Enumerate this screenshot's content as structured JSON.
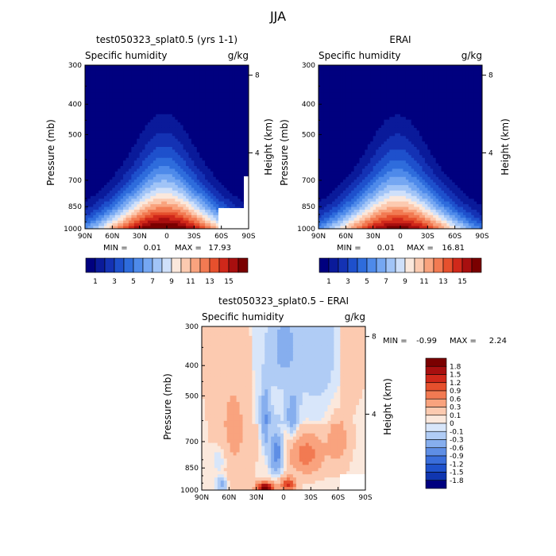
{
  "page_title": "JJA",
  "colors": {
    "positive_scale": [
      "#00007f",
      "#0a1a9a",
      "#1432b4",
      "#1e50cc",
      "#2e6cdc",
      "#4e8aea",
      "#75a7f2",
      "#a1c4f7",
      "#cfe0fa",
      "#fbe8dc",
      "#fccab0",
      "#f9a37e",
      "#f27a52",
      "#e6502d",
      "#d0281a",
      "#a80f0f",
      "#7a0000"
    ],
    "diff_scale": [
      "#7a0000",
      "#a80f0f",
      "#d0281a",
      "#e6502d",
      "#f27a52",
      "#f9a37e",
      "#fccab0",
      "#fbe8dc",
      "#d8e6fa",
      "#b0ccf5",
      "#86aeee",
      "#5e8ee5",
      "#3a6edb",
      "#1f52cc",
      "#1036b0",
      "#00007f"
    ]
  },
  "chart_data": [
    {
      "type": "heatmap",
      "title": "test050323_splat0.5 (yrs 1-1)",
      "variable_label": "Specific humidity",
      "units_label": "g/kg",
      "ylabel": "Pressure (mb)",
      "y2label": "Height (km)",
      "x_ticks": [
        "90N",
        "60N",
        "30N",
        "0",
        "30S",
        "60S",
        "90S"
      ],
      "y_ticks": [
        "300",
        "400",
        "500",
        "700",
        "850",
        "1000"
      ],
      "y2_ticks": [
        "8",
        "4"
      ],
      "xlim": [
        90,
        -90
      ],
      "ylim": [
        1000,
        300
      ],
      "min_label": "MIN =",
      "min_value": "0.01",
      "max_label": "MAX =",
      "max_value": "17.93",
      "colorbar_labels": [
        "1",
        "3",
        "5",
        "7",
        "9",
        "11",
        "13",
        "15"
      ],
      "peak_latitude": 3,
      "peak_value": 17.93
    },
    {
      "type": "heatmap",
      "title": "ERAI",
      "variable_label": "Specific humidity",
      "units_label": "g/kg",
      "ylabel": "Pressure (mb)",
      "y2label": "Height (km)",
      "x_ticks": [
        "90N",
        "60N",
        "30N",
        "0",
        "30S",
        "60S",
        "90S"
      ],
      "y_ticks": [
        "300",
        "400",
        "500",
        "700",
        "850",
        "1000"
      ],
      "y2_ticks": [
        "8",
        "4"
      ],
      "xlim": [
        90,
        -90
      ],
      "ylim": [
        1000,
        300
      ],
      "min_label": "MIN =",
      "min_value": "0.01",
      "max_label": "MAX =",
      "max_value": "16.81",
      "colorbar_labels": [
        "1",
        "3",
        "5",
        "7",
        "9",
        "11",
        "13",
        "15"
      ],
      "peak_latitude": 3,
      "peak_value": 16.81
    },
    {
      "type": "heatmap",
      "title": "test050323_splat0.5 – ERAI",
      "variable_label": "Specific humidity",
      "units_label": "g/kg",
      "ylabel": "Pressure (mb)",
      "y2label": "Height (km)",
      "x_ticks": [
        "90N",
        "60N",
        "30N",
        "0",
        "30S",
        "60S",
        "90S"
      ],
      "y_ticks": [
        "300",
        "400",
        "500",
        "700",
        "850",
        "1000"
      ],
      "y2_ticks": [
        "8",
        "4"
      ],
      "xlim": [
        90,
        -90
      ],
      "ylim": [
        1000,
        300
      ],
      "min_label": "MIN =",
      "min_value": "-0.99",
      "max_label": "MAX =",
      "max_value": "2.24",
      "colorbar_labels": [
        "1.8",
        "1.5",
        "1.2",
        "0.9",
        "0.6",
        "0.3",
        "0.1",
        "0",
        "-0.1",
        "-0.3",
        "-0.6",
        "-0.9",
        "-1.2",
        "-1.5",
        "-1.8"
      ]
    }
  ]
}
